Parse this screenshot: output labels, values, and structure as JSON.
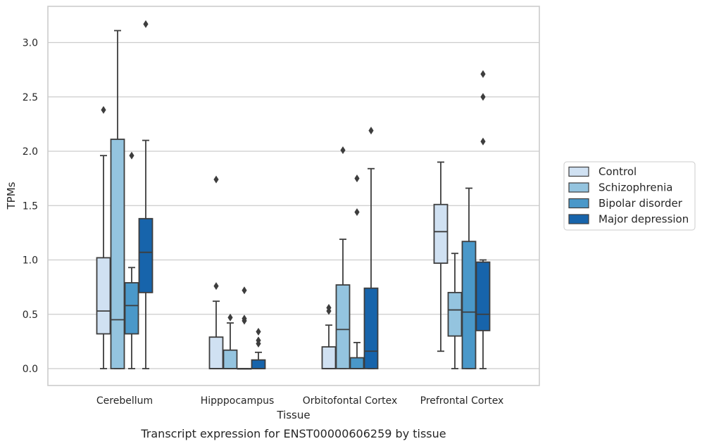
{
  "caption": "Transcript expression for ENST00000606259 by tissue",
  "chart_data": {
    "type": "boxplot",
    "xlabel": "Tissue",
    "ylabel": "TPMs",
    "ylim": [
      -0.15,
      3.35
    ],
    "yticks": [
      0.0,
      0.5,
      1.0,
      1.5,
      2.0,
      2.5,
      3.0
    ],
    "ytick_labels": [
      "0.0",
      "0.5",
      "1.0",
      "1.5",
      "2.0",
      "2.5",
      "3.0"
    ],
    "grid": "horizontal",
    "legend_position": "right",
    "categories": [
      "Cerebellum",
      "Hipppocampus",
      "Orbitofontal Cortex",
      "Prefrontal Cortex"
    ],
    "series": [
      {
        "name": "Control",
        "color": "#d0e1f2",
        "boxes": [
          {
            "q1": 0.32,
            "median": 0.53,
            "q3": 1.02,
            "whisker_low": 0.0,
            "whisker_high": 1.96,
            "outliers": [
              2.38
            ]
          },
          {
            "q1": 0.0,
            "median": 0.0,
            "q3": 0.29,
            "whisker_low": 0.0,
            "whisker_high": 0.62,
            "outliers": [
              0.76,
              1.74
            ]
          },
          {
            "q1": 0.0,
            "median": 0.0,
            "q3": 0.2,
            "whisker_low": 0.0,
            "whisker_high": 0.4,
            "outliers": [
              0.53,
              0.56
            ]
          },
          {
            "q1": 0.97,
            "median": 1.26,
            "q3": 1.51,
            "whisker_low": 0.16,
            "whisker_high": 1.9,
            "outliers": []
          }
        ]
      },
      {
        "name": "Schizophrenia",
        "color": "#94c4df",
        "boxes": [
          {
            "q1": 0.0,
            "median": 0.45,
            "q3": 2.11,
            "whisker_low": 0.0,
            "whisker_high": 3.11,
            "outliers": []
          },
          {
            "q1": 0.0,
            "median": 0.0,
            "q3": 0.17,
            "whisker_low": 0.0,
            "whisker_high": 0.42,
            "outliers": [
              0.47
            ]
          },
          {
            "q1": 0.0,
            "median": 0.36,
            "q3": 0.77,
            "whisker_low": 0.0,
            "whisker_high": 1.19,
            "outliers": [
              2.01
            ]
          },
          {
            "q1": 0.3,
            "median": 0.54,
            "q3": 0.7,
            "whisker_low": 0.0,
            "whisker_high": 1.06,
            "outliers": []
          }
        ]
      },
      {
        "name": "Bipolar disorder",
        "color": "#4a98c9",
        "boxes": [
          {
            "q1": 0.32,
            "median": 0.58,
            "q3": 0.79,
            "whisker_low": 0.0,
            "whisker_high": 0.93,
            "outliers": [
              1.96
            ]
          },
          {
            "q1": 0.0,
            "median": 0.0,
            "q3": 0.0,
            "whisker_low": 0.0,
            "whisker_high": 0.0,
            "outliers": [
              0.44,
              0.46,
              0.72
            ]
          },
          {
            "q1": 0.0,
            "median": 0.0,
            "q3": 0.1,
            "whisker_low": 0.0,
            "whisker_high": 0.24,
            "outliers": [
              1.44,
              1.75
            ]
          },
          {
            "q1": 0.0,
            "median": 0.52,
            "q3": 1.17,
            "whisker_low": 0.0,
            "whisker_high": 1.66,
            "outliers": []
          }
        ]
      },
      {
        "name": "Major depression",
        "color": "#1764ab",
        "boxes": [
          {
            "q1": 0.7,
            "median": 1.07,
            "q3": 1.38,
            "whisker_low": 0.0,
            "whisker_high": 2.1,
            "outliers": [
              3.17
            ]
          },
          {
            "q1": 0.0,
            "median": 0.0,
            "q3": 0.08,
            "whisker_low": 0.0,
            "whisker_high": 0.15,
            "outliers": [
              0.23,
              0.26,
              0.34
            ]
          },
          {
            "q1": 0.0,
            "median": 0.16,
            "q3": 0.74,
            "whisker_low": 0.0,
            "whisker_high": 1.84,
            "outliers": [
              2.19
            ]
          },
          {
            "q1": 0.35,
            "median": 0.5,
            "q3": 0.98,
            "whisker_low": 0.0,
            "whisker_high": 1.0,
            "outliers": [
              2.09,
              2.5,
              2.71
            ]
          }
        ]
      }
    ]
  }
}
